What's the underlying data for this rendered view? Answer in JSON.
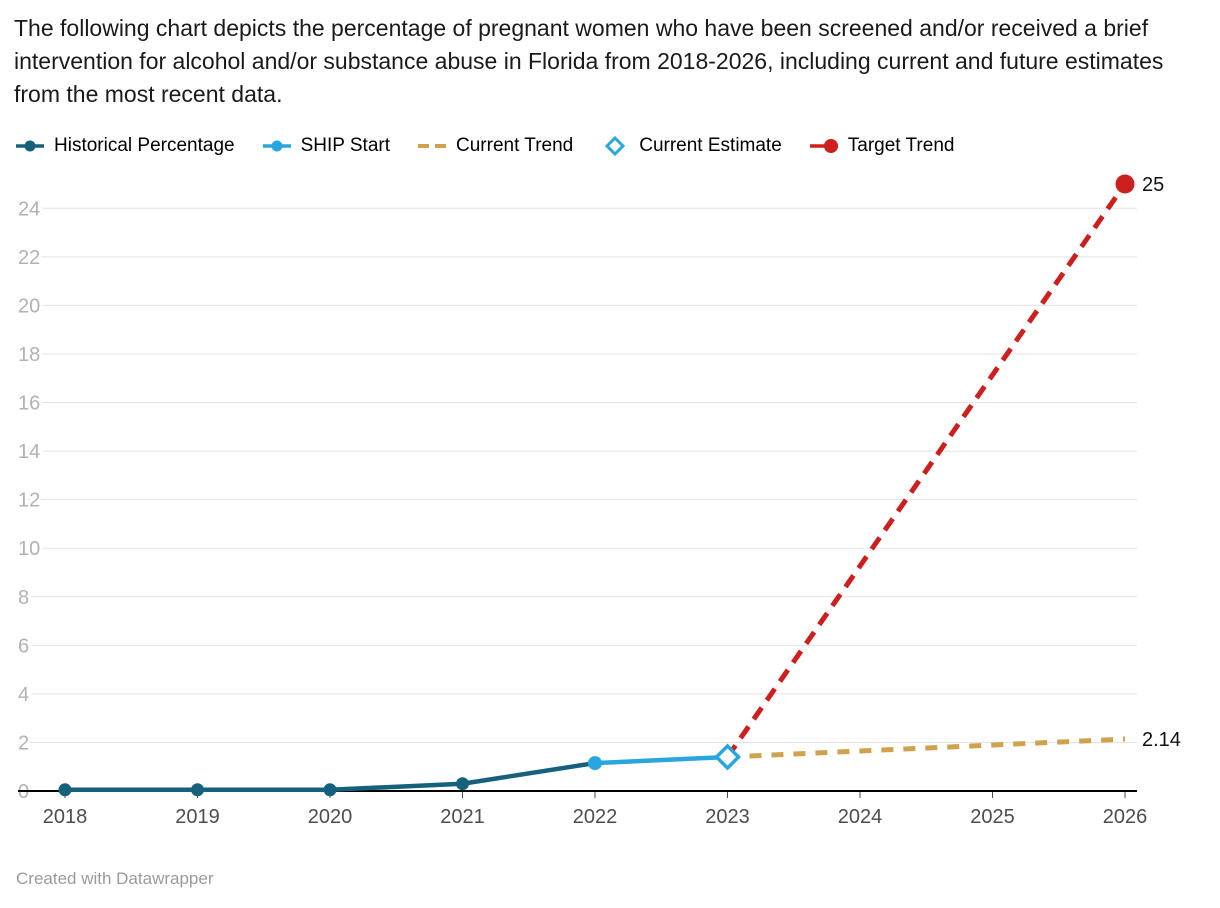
{
  "chart_data": {
    "type": "line",
    "title": "The following chart depicts the percentage of pregnant women who have been screened and/or received a brief intervention for alcohol and/or substance abuse in Florida from 2018-2026, including current and future estimates from the most recent data.",
    "x": [
      2018,
      2019,
      2020,
      2021,
      2022,
      2023,
      2024,
      2025,
      2026
    ],
    "xlabel": "",
    "ylabel": "",
    "ylim": [
      0,
      25
    ],
    "yticks": [
      0,
      2,
      4,
      6,
      8,
      10,
      12,
      14,
      16,
      18,
      20,
      22,
      24
    ],
    "grid": true,
    "legend_position": "top",
    "series": [
      {
        "name": "Historical Percentage",
        "color": "#15607a",
        "style": "solid",
        "points": [
          [
            2018,
            0.05
          ],
          [
            2019,
            0.05
          ],
          [
            2020,
            0.05
          ],
          [
            2021,
            0.3
          ],
          [
            2022,
            1.15
          ]
        ],
        "dots": [
          0,
          1,
          2,
          3,
          4
        ],
        "dot_r": 6.5
      },
      {
        "name": "SHIP Start",
        "color": "#29a6dd",
        "style": "solid",
        "points": [
          [
            2022,
            1.15
          ],
          [
            2023,
            1.4
          ]
        ],
        "dots": [
          0
        ],
        "dot_r": 7
      },
      {
        "name": "Current Trend",
        "color": "#d0a24e",
        "style": "dashed",
        "dash": "12 10",
        "width": 5,
        "points": [
          [
            2023,
            1.4
          ],
          [
            2026,
            2.14
          ]
        ],
        "end_label": "2.14"
      },
      {
        "name": "Target Trend",
        "color": "#cc1f1e",
        "style": "dashed",
        "dash": "14 9",
        "width": 5,
        "points": [
          [
            2023,
            1.4
          ],
          [
            2026,
            25
          ]
        ],
        "dots": [
          1
        ],
        "dot_r": 9.5,
        "end_label": "25"
      },
      {
        "name": "Current Estimate",
        "color": "#29a6dd",
        "style": "none",
        "marker": "diamond",
        "points": [
          [
            2023,
            1.4
          ]
        ]
      }
    ]
  },
  "legend": [
    {
      "label": "Historical Percentage",
      "color": "#15607a",
      "swatch": "line-dot",
      "icon": "historical-percentage-legend-icon"
    },
    {
      "label": "SHIP Start",
      "color": "#29a6dd",
      "swatch": "line-dot",
      "icon": "ship-start-legend-icon"
    },
    {
      "label": "Current Trend",
      "color": "#d0a24e",
      "swatch": "dashes",
      "icon": "current-trend-legend-icon"
    },
    {
      "label": "Current Estimate",
      "color": "#29a6dd",
      "swatch": "diamond",
      "icon": "current-estimate-legend-icon"
    },
    {
      "label": "Target Trend",
      "color": "#cc1f1e",
      "swatch": "line-dot-big",
      "icon": "target-trend-legend-icon"
    }
  ],
  "footer": {
    "attribution": "Created with Datawrapper"
  }
}
